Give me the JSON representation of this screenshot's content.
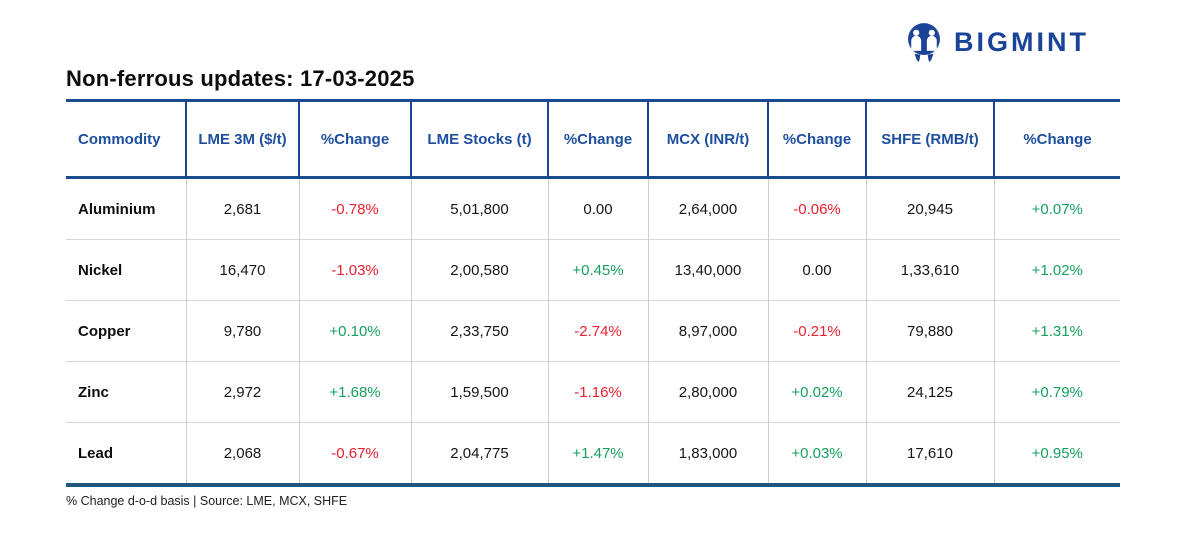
{
  "brand": {
    "name": "BIGMINT",
    "logo_icon": "bigmint-m-circle-icon",
    "brand_color": "#1b4398"
  },
  "page": {
    "title": "Non-ferrous updates: 17-03-2025",
    "footnote": "% Change d-o-d basis | Source: LME, MCX, SHFE"
  },
  "colors": {
    "header_text": "#1d4f9e",
    "header_rule": "#1a4a8f",
    "bottom_rule": "#1d567e",
    "grid_line": "#cfcfcf",
    "positive": "#17a05e",
    "negative": "#e8212e",
    "neutral": "#161616"
  },
  "chart_data": {
    "type": "table",
    "title": "Non-ferrous updates: 17-03-2025",
    "columns": [
      "Commodity",
      "LME 3M ($/t)",
      "%Change",
      "LME Stocks (t)",
      "%Change",
      "MCX (INR/t)",
      "%Change",
      "SHFE (RMB/t)",
      "%Change"
    ],
    "rows": [
      [
        "Aluminium",
        "2,681",
        "-0.78%",
        "5,01,800",
        "0.00",
        "2,64,000",
        "-0.06%",
        "20,945",
        "+0.07%"
      ],
      [
        "Nickel",
        "16,470",
        "-1.03%",
        "2,00,580",
        "+0.45%",
        "13,40,000",
        "0.00",
        "1,33,610",
        "+1.02%"
      ],
      [
        "Copper",
        "9,780",
        "+0.10%",
        "2,33,750",
        "-2.74%",
        "8,97,000",
        "-0.21%",
        "79,880",
        "+1.31%"
      ],
      [
        "Zinc",
        "2,972",
        "+1.68%",
        "1,59,500",
        "-1.16%",
        "2,80,000",
        "+0.02%",
        "24,125",
        "+0.79%"
      ],
      [
        "Lead",
        "2,068",
        "-0.67%",
        "2,04,775",
        "+1.47%",
        "1,83,000",
        "+0.03%",
        "17,610",
        "+0.95%"
      ]
    ],
    "footnote": "% Change d-o-d basis | Source: LME, MCX, SHFE",
    "legend_position": "none",
    "grid": "on"
  },
  "styles": {
    "cell_types": [
      [
        "label",
        "n",
        "neg",
        "n",
        "n",
        "n",
        "neg",
        "n",
        "pos"
      ],
      [
        "label",
        "n",
        "neg",
        "n",
        "pos",
        "n",
        "n",
        "n",
        "pos"
      ],
      [
        "label",
        "n",
        "pos",
        "n",
        "neg",
        "n",
        "neg",
        "n",
        "pos"
      ],
      [
        "label",
        "n",
        "pos",
        "n",
        "neg",
        "n",
        "pos",
        "n",
        "pos"
      ],
      [
        "label",
        "n",
        "neg",
        "n",
        "pos",
        "n",
        "pos",
        "n",
        "pos"
      ]
    ]
  }
}
